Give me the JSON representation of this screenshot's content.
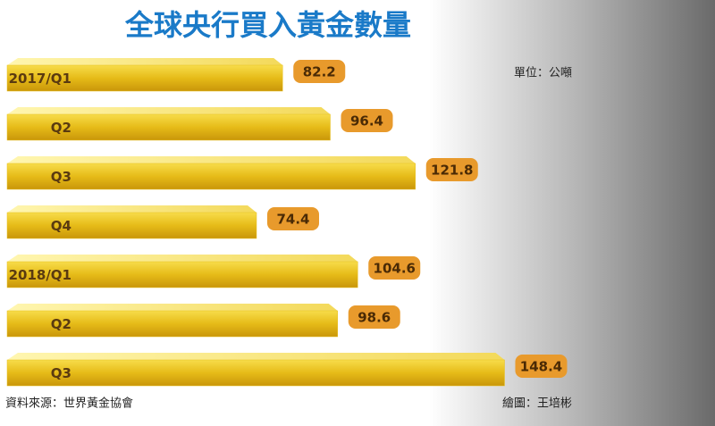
{
  "chart_data": {
    "type": "bar",
    "orientation": "horizontal",
    "title": "全球央行買入黃金數量",
    "unit": "單位：公噸",
    "source": "資料來源：世界黃金協會",
    "credit": "繪圖：王培彬",
    "categories": [
      "2017/Q1",
      "Q2",
      "Q3",
      "Q4",
      "2018/Q1",
      "Q2",
      "Q3"
    ],
    "values": [
      82.2,
      96.4,
      121.8,
      74.4,
      104.6,
      98.6,
      148.4
    ],
    "color": "#e8c020"
  }
}
